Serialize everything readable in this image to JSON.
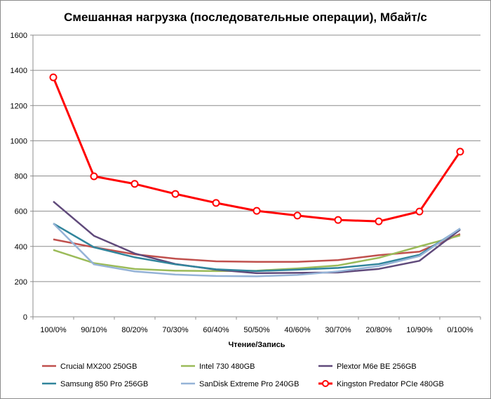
{
  "chart_data": {
    "type": "line",
    "title": "Смешанная нагрузка (последовательные операции), Мбайт/с",
    "xlabel": "Чтение/Запись",
    "ylabel": "",
    "ylim": [
      0,
      1600
    ],
    "yticks": [
      0,
      200,
      400,
      600,
      800,
      1000,
      1200,
      1400,
      1600
    ],
    "grid": true,
    "legend_position": "bottom",
    "categories": [
      "100/0%",
      "90/10%",
      "80/20%",
      "70/30%",
      "60/40%",
      "50/50%",
      "40/60%",
      "30/70%",
      "20/80%",
      "10/90%",
      "0/100%"
    ],
    "series": [
      {
        "name": "Crucial MX200 250GB",
        "color": "#c0504d",
        "marker": false,
        "values": [
          440,
          395,
          355,
          330,
          315,
          312,
          312,
          322,
          350,
          370,
          470
        ]
      },
      {
        "name": "Intel 730 480GB",
        "color": "#9bbb59",
        "marker": false,
        "values": [
          380,
          305,
          272,
          262,
          260,
          262,
          275,
          292,
          335,
          400,
          462
        ]
      },
      {
        "name": "Plextor M6e BE 256GB",
        "color": "#604a7b",
        "marker": false,
        "values": [
          655,
          460,
          360,
          300,
          268,
          248,
          250,
          252,
          272,
          318,
          495
        ]
      },
      {
        "name": "Samsung 850 Pro 256GB",
        "color": "#31859c",
        "marker": false,
        "values": [
          530,
          395,
          338,
          298,
          270,
          260,
          268,
          278,
          300,
          352,
          500
        ]
      },
      {
        "name": "SanDisk Extreme Pro 240GB",
        "color": "#95b3d7",
        "marker": false,
        "values": [
          530,
          298,
          258,
          240,
          232,
          230,
          238,
          258,
          288,
          345,
          502
        ]
      },
      {
        "name": "Kingston Predator PCIe 480GB",
        "color": "#ff0000",
        "marker": true,
        "values": [
          1360,
          798,
          755,
          698,
          647,
          602,
          575,
          550,
          542,
          598,
          938
        ]
      }
    ]
  }
}
